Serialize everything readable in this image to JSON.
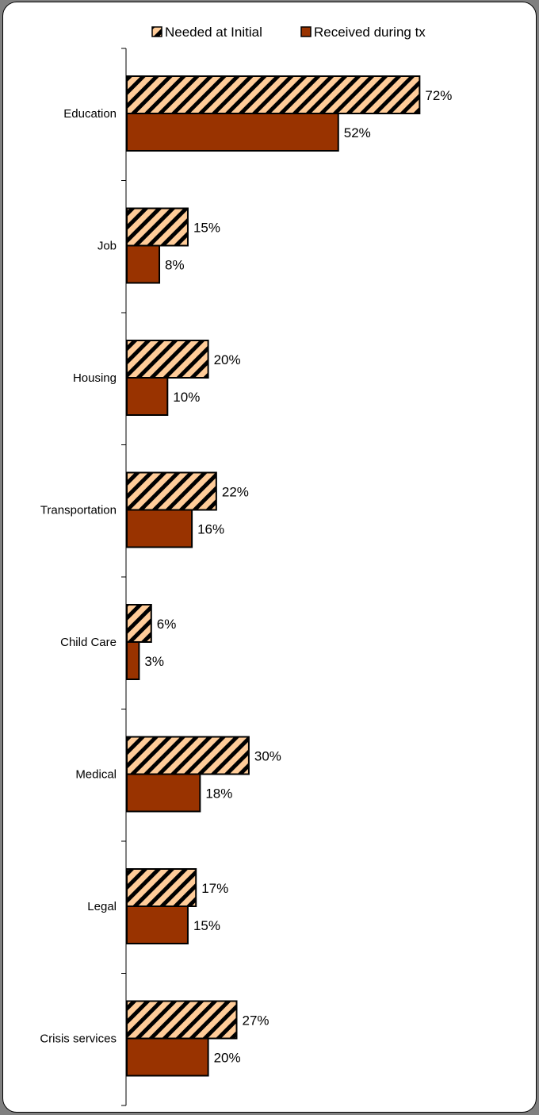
{
  "chart_data": {
    "type": "bar",
    "orientation": "horizontal",
    "categories": [
      "Education",
      "Job",
      "Housing",
      "Transportation",
      "Child Care",
      "Medical",
      "Legal",
      "Crisis services"
    ],
    "series": [
      {
        "name": "Needed at Initial",
        "values": [
          72,
          15,
          20,
          22,
          6,
          30,
          17,
          27
        ],
        "labels": [
          "72%",
          "15%",
          "20%",
          "22%",
          "6%",
          "30%",
          "17%",
          "27%"
        ],
        "color": "#ffcc99",
        "pattern": "diagonal-hatch"
      },
      {
        "name": "Received during tx",
        "values": [
          52,
          8,
          10,
          16,
          3,
          18,
          15,
          20
        ],
        "labels": [
          "52%",
          "8%",
          "10%",
          "16%",
          "3%",
          "18%",
          "15%",
          "20%"
        ],
        "color": "#993300",
        "pattern": "solid"
      }
    ],
    "legend_position": "top",
    "grid": false
  }
}
